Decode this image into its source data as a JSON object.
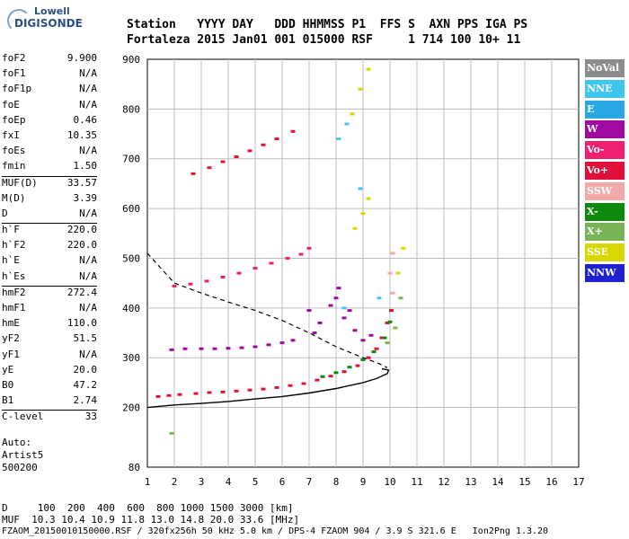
{
  "logo": {
    "line1": "Lowell",
    "line2": "DIGISONDE"
  },
  "header": {
    "row1": "Station   YYYY DAY   DDD HHMMSS P1  FFS S  AXN PPS IGA PS",
    "row2": "Fortaleza 2015 Jan01 001 015000 RSF     1 714 100 10+ 11"
  },
  "params": [
    {
      "k": "foF2",
      "v": "9.900"
    },
    {
      "k": "foF1",
      "v": "N/A"
    },
    {
      "k": "foF1p",
      "v": "N/A"
    },
    {
      "k": "foE",
      "v": "N/A"
    },
    {
      "k": "foEp",
      "v": "0.46"
    },
    {
      "k": "fxI",
      "v": "10.35"
    },
    {
      "k": "foEs",
      "v": "N/A"
    },
    {
      "k": "fmin",
      "v": "1.50"
    },
    {
      "k": "MUF(D)",
      "v": "33.57",
      "sep": true
    },
    {
      "k": "M(D)",
      "v": "3.39"
    },
    {
      "k": "D",
      "v": "N/A"
    },
    {
      "k": "h`F",
      "v": "220.0",
      "sep": true
    },
    {
      "k": "h`F2",
      "v": "220.0"
    },
    {
      "k": "h`E",
      "v": "N/A"
    },
    {
      "k": "h`Es",
      "v": "N/A"
    },
    {
      "k": "hmF2",
      "v": "272.4",
      "sep": true
    },
    {
      "k": "hmF1",
      "v": "N/A"
    },
    {
      "k": "hmE",
      "v": "110.0"
    },
    {
      "k": "yF2",
      "v": "51.5"
    },
    {
      "k": "yF1",
      "v": "N/A"
    },
    {
      "k": "yE",
      "v": "20.0"
    },
    {
      "k": "B0",
      "v": "47.2"
    },
    {
      "k": "B1",
      "v": "2.74"
    },
    {
      "k": "C-level",
      "v": "33",
      "sep": true
    }
  ],
  "auto": {
    "l1": "Auto:",
    "l2": "Artist5",
    "l3": "500200"
  },
  "footer": {
    "d_row": "D     100  200  400  600  800 1000 1500 3000 [km]",
    "muf_row": "MUF  10.3 10.4 10.9 11.8 13.0 14.8 20.0 33.6 [MHz]",
    "file_row": "FZAOM_20150010150000.RSF / 320fx256h 50 kHz 5.0 km / DPS-4 FZAOM 904 / 3.9 S 321.6 E   Ion2Png 1.3.20"
  },
  "legend": [
    {
      "label": "NoVal",
      "color": "#8c8c8c"
    },
    {
      "label": "NNE",
      "color": "#3fc6ef"
    },
    {
      "label": "E",
      "color": "#2aa8e6"
    },
    {
      "label": "W",
      "color": "#a10aa0"
    },
    {
      "label": "Vo-",
      "color": "#ef2070"
    },
    {
      "label": "Vo+",
      "color": "#e0103a"
    },
    {
      "label": "SSW",
      "color": "#f2aaa8"
    },
    {
      "label": "X-",
      "color": "#0d8a0d"
    },
    {
      "label": "X+",
      "color": "#78b356"
    },
    {
      "label": "SSE",
      "color": "#d8d800"
    },
    {
      "label": "NNW",
      "color": "#2020d0"
    }
  ],
  "chart_data": {
    "type": "scatter",
    "title": "",
    "xlabel": "",
    "ylabel": "",
    "xlim": [
      1,
      17
    ],
    "ylim": [
      80,
      900
    ],
    "xticks": [
      1,
      2,
      3,
      4,
      5,
      6,
      7,
      8,
      9,
      10,
      11,
      12,
      13,
      14,
      15,
      16,
      17
    ],
    "yticks": [
      80,
      200,
      300,
      400,
      500,
      600,
      700,
      800,
      900
    ],
    "grid": true,
    "series": [
      {
        "color": "#e0103a",
        "points": [
          [
            1.4,
            222
          ],
          [
            1.8,
            224
          ],
          [
            2.2,
            226
          ],
          [
            2.8,
            228
          ],
          [
            3.3,
            230
          ],
          [
            3.8,
            231
          ],
          [
            4.3,
            233
          ],
          [
            4.8,
            235
          ],
          [
            5.3,
            237
          ],
          [
            5.8,
            240
          ],
          [
            6.3,
            244
          ],
          [
            6.8,
            248
          ],
          [
            7.3,
            255
          ],
          [
            7.8,
            263
          ],
          [
            8.3,
            272
          ],
          [
            8.8,
            284
          ],
          [
            9.2,
            300
          ],
          [
            9.5,
            318
          ],
          [
            9.7,
            340
          ],
          [
            9.9,
            370
          ],
          [
            10.05,
            395
          ]
        ]
      },
      {
        "color": "#ef2070",
        "points": [
          [
            2.0,
            444
          ],
          [
            2.6,
            448
          ],
          [
            3.2,
            454
          ],
          [
            3.8,
            462
          ],
          [
            4.4,
            470
          ],
          [
            5.0,
            480
          ],
          [
            5.6,
            490
          ],
          [
            6.2,
            500
          ],
          [
            6.7,
            508
          ],
          [
            7.0,
            520
          ]
        ]
      },
      {
        "color": "#e0103a",
        "points": [
          [
            2.7,
            670
          ],
          [
            3.3,
            682
          ],
          [
            3.8,
            694
          ],
          [
            4.3,
            704
          ],
          [
            4.8,
            716
          ],
          [
            5.3,
            728
          ],
          [
            5.8,
            740
          ],
          [
            6.4,
            755
          ]
        ]
      },
      {
        "color": "#a10aa0",
        "points": [
          [
            1.9,
            316
          ],
          [
            2.4,
            318
          ],
          [
            3.0,
            318
          ],
          [
            3.5,
            318
          ],
          [
            4.0,
            319
          ],
          [
            4.5,
            320
          ],
          [
            5.0,
            322
          ],
          [
            5.5,
            326
          ],
          [
            6.0,
            330
          ],
          [
            6.4,
            335
          ]
        ]
      },
      {
        "color": "#a10aa0",
        "points": [
          [
            7.0,
            395
          ],
          [
            7.4,
            370
          ],
          [
            7.8,
            405
          ],
          [
            8.1,
            440
          ],
          [
            8.3,
            380
          ],
          [
            8.7,
            355
          ],
          [
            9.0,
            335
          ],
          [
            9.3,
            345
          ],
          [
            7.2,
            350
          ],
          [
            8.0,
            420
          ],
          [
            8.5,
            395
          ]
        ]
      },
      {
        "color": "#0d8a0d",
        "points": [
          [
            7.5,
            262
          ],
          [
            8.0,
            270
          ],
          [
            8.5,
            281
          ],
          [
            9.0,
            296
          ],
          [
            9.4,
            312
          ],
          [
            9.8,
            340
          ],
          [
            10.0,
            372
          ]
        ]
      },
      {
        "color": "#d8d800",
        "points": [
          [
            8.6,
            790
          ],
          [
            8.9,
            840
          ],
          [
            9.2,
            880
          ],
          [
            8.7,
            560
          ],
          [
            9.0,
            590
          ],
          [
            9.2,
            620
          ],
          [
            10.5,
            520
          ],
          [
            10.3,
            470
          ]
        ]
      },
      {
        "color": "#3fc6ef",
        "points": [
          [
            8.1,
            740
          ],
          [
            8.4,
            770
          ],
          [
            8.9,
            640
          ],
          [
            9.6,
            420
          ],
          [
            8.3,
            400
          ]
        ]
      },
      {
        "color": "#f2aaa8",
        "points": [
          [
            10.1,
            510
          ],
          [
            10.0,
            470
          ],
          [
            10.1,
            430
          ]
        ]
      },
      {
        "color": "#78b356",
        "points": [
          [
            9.9,
            330
          ],
          [
            10.2,
            360
          ],
          [
            10.4,
            420
          ],
          [
            1.9,
            148
          ]
        ]
      }
    ],
    "profile_solid": [
      [
        1,
        200
      ],
      [
        2,
        205
      ],
      [
        3,
        208
      ],
      [
        4,
        212
      ],
      [
        5,
        217
      ],
      [
        6,
        222
      ],
      [
        7,
        229
      ],
      [
        8,
        238
      ],
      [
        9,
        250
      ],
      [
        9.5,
        258
      ],
      [
        9.9,
        268
      ],
      [
        9.95,
        275
      ],
      [
        9.7,
        278
      ]
    ],
    "profile_dashed": [
      [
        1,
        510
      ],
      [
        2,
        450
      ],
      [
        3,
        430
      ],
      [
        4,
        412
      ],
      [
        5,
        395
      ],
      [
        6,
        375
      ],
      [
        7,
        350
      ],
      [
        8,
        322
      ],
      [
        9,
        300
      ],
      [
        9.6,
        288
      ],
      [
        9.9,
        280
      ]
    ]
  }
}
